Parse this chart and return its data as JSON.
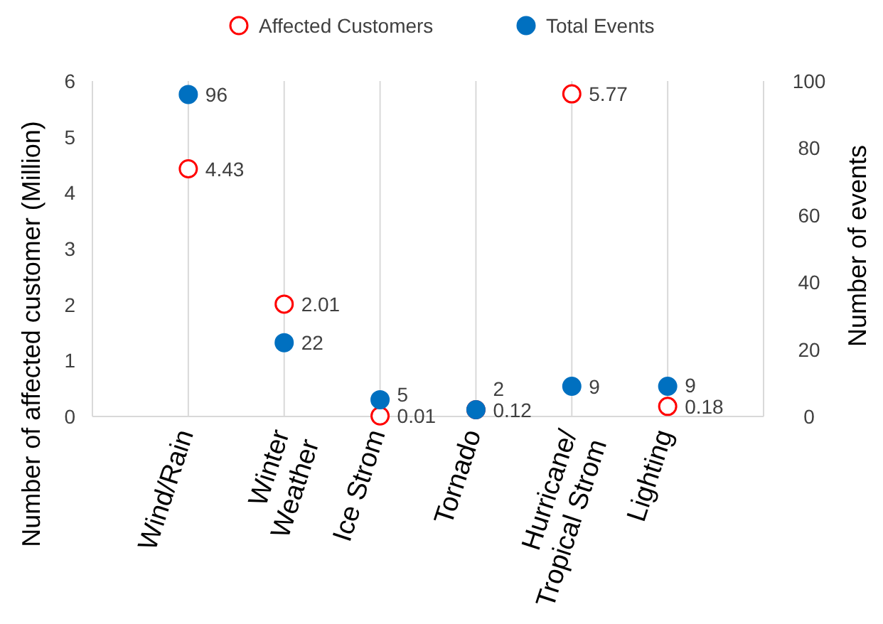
{
  "chart_data": {
    "type": "scatter",
    "xlabel": null,
    "ylabel": "Number of affected customer (Million)",
    "y2label": "Number of events",
    "categories": [
      "Wind/Rain",
      "Winter\nWeather",
      "Ice Strom",
      "Tornado",
      "Hurricane/\nTropical Strom",
      "Lighting"
    ],
    "series": [
      {
        "name": "Affected Customers",
        "color": "#ff0000",
        "values": [
          4.43,
          2.01,
          0.01,
          0.12,
          5.77,
          0.18
        ]
      },
      {
        "name": "Total Events",
        "color": "#0070c0",
        "axis": "y2",
        "values": [
          96,
          22,
          5,
          2,
          9,
          9
        ]
      }
    ],
    "ylim": [
      0,
      6
    ],
    "yticks": [
      0,
      1,
      2,
      3,
      4,
      5,
      6
    ],
    "y2lim": [
      0,
      100
    ],
    "y2ticks": [
      0,
      20,
      40,
      60,
      80,
      100
    ],
    "data_labels": true,
    "grid": "x",
    "legend": "top",
    "marker": "circle"
  }
}
